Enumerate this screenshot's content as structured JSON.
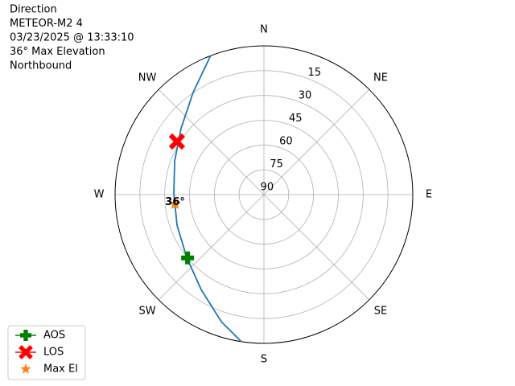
{
  "chart_data": {
    "type": "polar",
    "title_lines": [
      "Direction",
      "METEOR-M2 4",
      "03/23/2025 @ 13:33:10",
      "36° Max Elevation",
      "Northbound"
    ],
    "theta_ticks": [
      0,
      45,
      90,
      135,
      180,
      225,
      270,
      315
    ],
    "theta_labels": [
      "N",
      "NE",
      "E",
      "SE",
      "S",
      "SW",
      "W",
      "NW"
    ],
    "rlim": [
      90,
      0
    ],
    "rticks": [
      15,
      30,
      45,
      60,
      75,
      90
    ],
    "grid": true,
    "track": {
      "color": "#1f77b4",
      "azimuth": [
        188.7,
        198.5,
        213.5,
        230.9,
        250.6,
        271,
        290.7,
        308.5,
        325.3,
        339
      ],
      "elevation": [
        0,
        8.9,
        21.2,
        29.8,
        34.3,
        35.5,
        32.3,
        25.9,
        14.8,
        0
      ]
    },
    "series": [
      {
        "name": "AOS",
        "color": "#008000",
        "marker": "plus",
        "azimuth": [
          230.3
        ],
        "elevation": [
          30
        ]
      },
      {
        "name": "LOS",
        "color": "#ff0000",
        "marker": "x",
        "azimuth": [
          301.4
        ],
        "elevation": [
          28.4
        ]
      },
      {
        "name": "Max El",
        "color": "#ff7f0e",
        "marker": "star",
        "azimuth": [
          264
        ],
        "elevation": [
          36
        ],
        "value_labels": [
          "36°"
        ]
      }
    ],
    "legend": "lower left"
  }
}
